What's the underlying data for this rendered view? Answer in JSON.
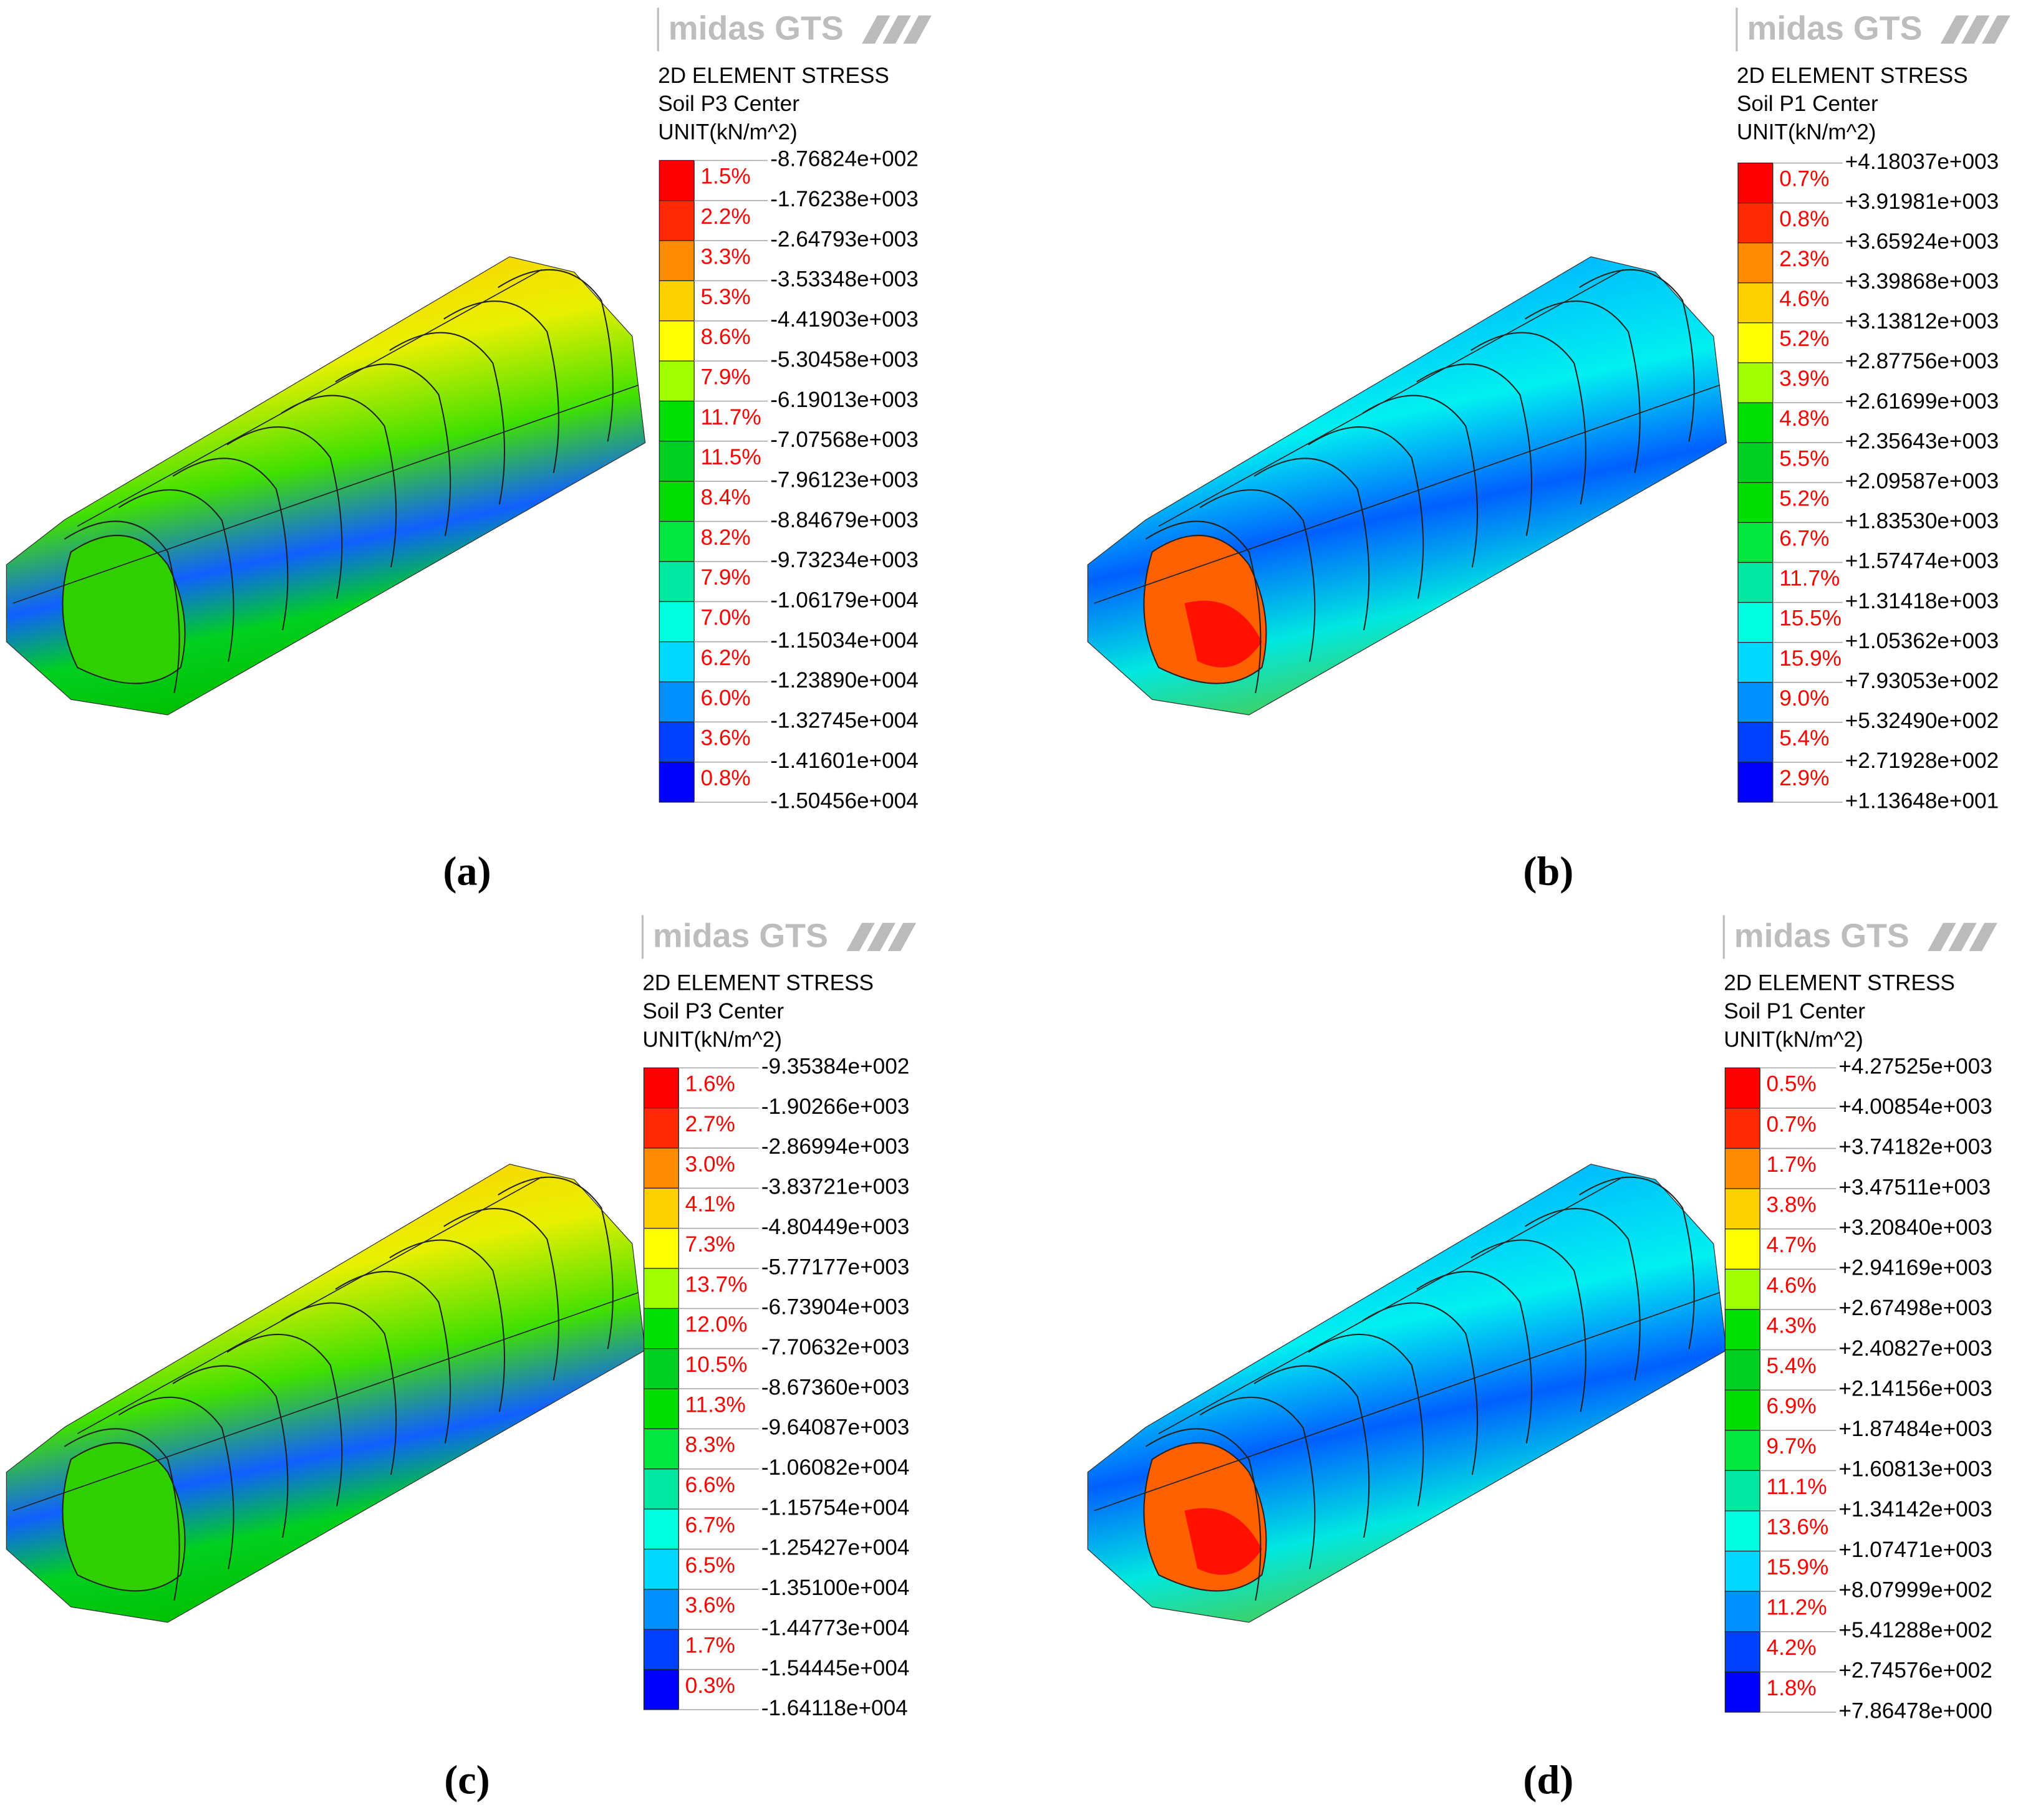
{
  "panels": [
    {
      "logo": "midas GTS",
      "title": [
        "2D ELEMENT STRESS",
        "Soil P3 Center",
        "UNIT(kN/m^2)"
      ],
      "percents": [
        "1.5%",
        "2.2%",
        "3.3%",
        "5.3%",
        "8.6%",
        "7.9%",
        "11.7%",
        "11.5%",
        "8.4%",
        "8.2%",
        "7.9%",
        "7.0%",
        "6.2%",
        "6.0%",
        "3.6%",
        "0.8%"
      ],
      "levels": [
        "-8.76824e+002",
        "-1.76238e+003",
        "-2.64793e+003",
        "-3.53348e+003",
        "-4.41903e+003",
        "-5.30458e+003",
        "-6.19013e+003",
        "-7.07568e+003",
        "-7.96123e+003",
        "-8.84679e+003",
        "-9.73234e+003",
        "-1.06179e+004",
        "-1.15034e+004",
        "-1.23890e+004",
        "-1.32745e+004",
        "-1.41601e+004",
        "-1.50456e+004"
      ],
      "caption": "(a)"
    },
    {
      "logo": "midas GTS",
      "title": [
        "2D ELEMENT STRESS",
        "Soil P1 Center",
        "UNIT(kN/m^2)"
      ],
      "percents": [
        "0.7%",
        "0.8%",
        "2.3%",
        "4.6%",
        "5.2%",
        "3.9%",
        "4.8%",
        "5.5%",
        "5.2%",
        "6.7%",
        "11.7%",
        "15.5%",
        "15.9%",
        "9.0%",
        "5.4%",
        "2.9%"
      ],
      "levels": [
        "+4.18037e+003",
        "+3.91981e+003",
        "+3.65924e+003",
        "+3.39868e+003",
        "+3.13812e+003",
        "+2.87756e+003",
        "+2.61699e+003",
        "+2.35643e+003",
        "+2.09587e+003",
        "+1.83530e+003",
        "+1.57474e+003",
        "+1.31418e+003",
        "+1.05362e+003",
        "+7.93053e+002",
        "+5.32490e+002",
        "+2.71928e+002",
        "+1.13648e+001"
      ],
      "caption": "(b)"
    },
    {
      "logo": "midas GTS",
      "title": [
        "2D ELEMENT STRESS",
        "Soil P3 Center",
        "UNIT(kN/m^2)"
      ],
      "percents": [
        "1.6%",
        "2.7%",
        "3.0%",
        "4.1%",
        "7.3%",
        "13.7%",
        "12.0%",
        "10.5%",
        "11.3%",
        "8.3%",
        "6.6%",
        "6.7%",
        "6.5%",
        "3.6%",
        "1.7%",
        "0.3%"
      ],
      "levels": [
        "-9.35384e+002",
        "-1.90266e+003",
        "-2.86994e+003",
        "-3.83721e+003",
        "-4.80449e+003",
        "-5.77177e+003",
        "-6.73904e+003",
        "-7.70632e+003",
        "-8.67360e+003",
        "-9.64087e+003",
        "-1.06082e+004",
        "-1.15754e+004",
        "-1.25427e+004",
        "-1.35100e+004",
        "-1.44773e+004",
        "-1.54445e+004",
        "-1.64118e+004"
      ],
      "caption": "(c)"
    },
    {
      "logo": "midas GTS",
      "title": [
        "2D ELEMENT STRESS",
        "Soil P1 Center",
        "UNIT(kN/m^2)"
      ],
      "percents": [
        "0.5%",
        "0.7%",
        "1.7%",
        "3.8%",
        "4.7%",
        "4.6%",
        "4.3%",
        "5.4%",
        "6.9%",
        "9.7%",
        "11.1%",
        "13.6%",
        "15.9%",
        "11.2%",
        "4.2%",
        "1.8%"
      ],
      "levels": [
        "+4.27525e+003",
        "+4.00854e+003",
        "+3.74182e+003",
        "+3.47511e+003",
        "+3.20840e+003",
        "+2.94169e+003",
        "+2.67498e+003",
        "+2.40827e+003",
        "+2.14156e+003",
        "+1.87484e+003",
        "+1.60813e+003",
        "+1.34142e+003",
        "+1.07471e+003",
        "+8.07999e+002",
        "+5.41288e+002",
        "+2.74576e+002",
        "+7.86478e+000"
      ],
      "caption": "(d)"
    }
  ]
}
